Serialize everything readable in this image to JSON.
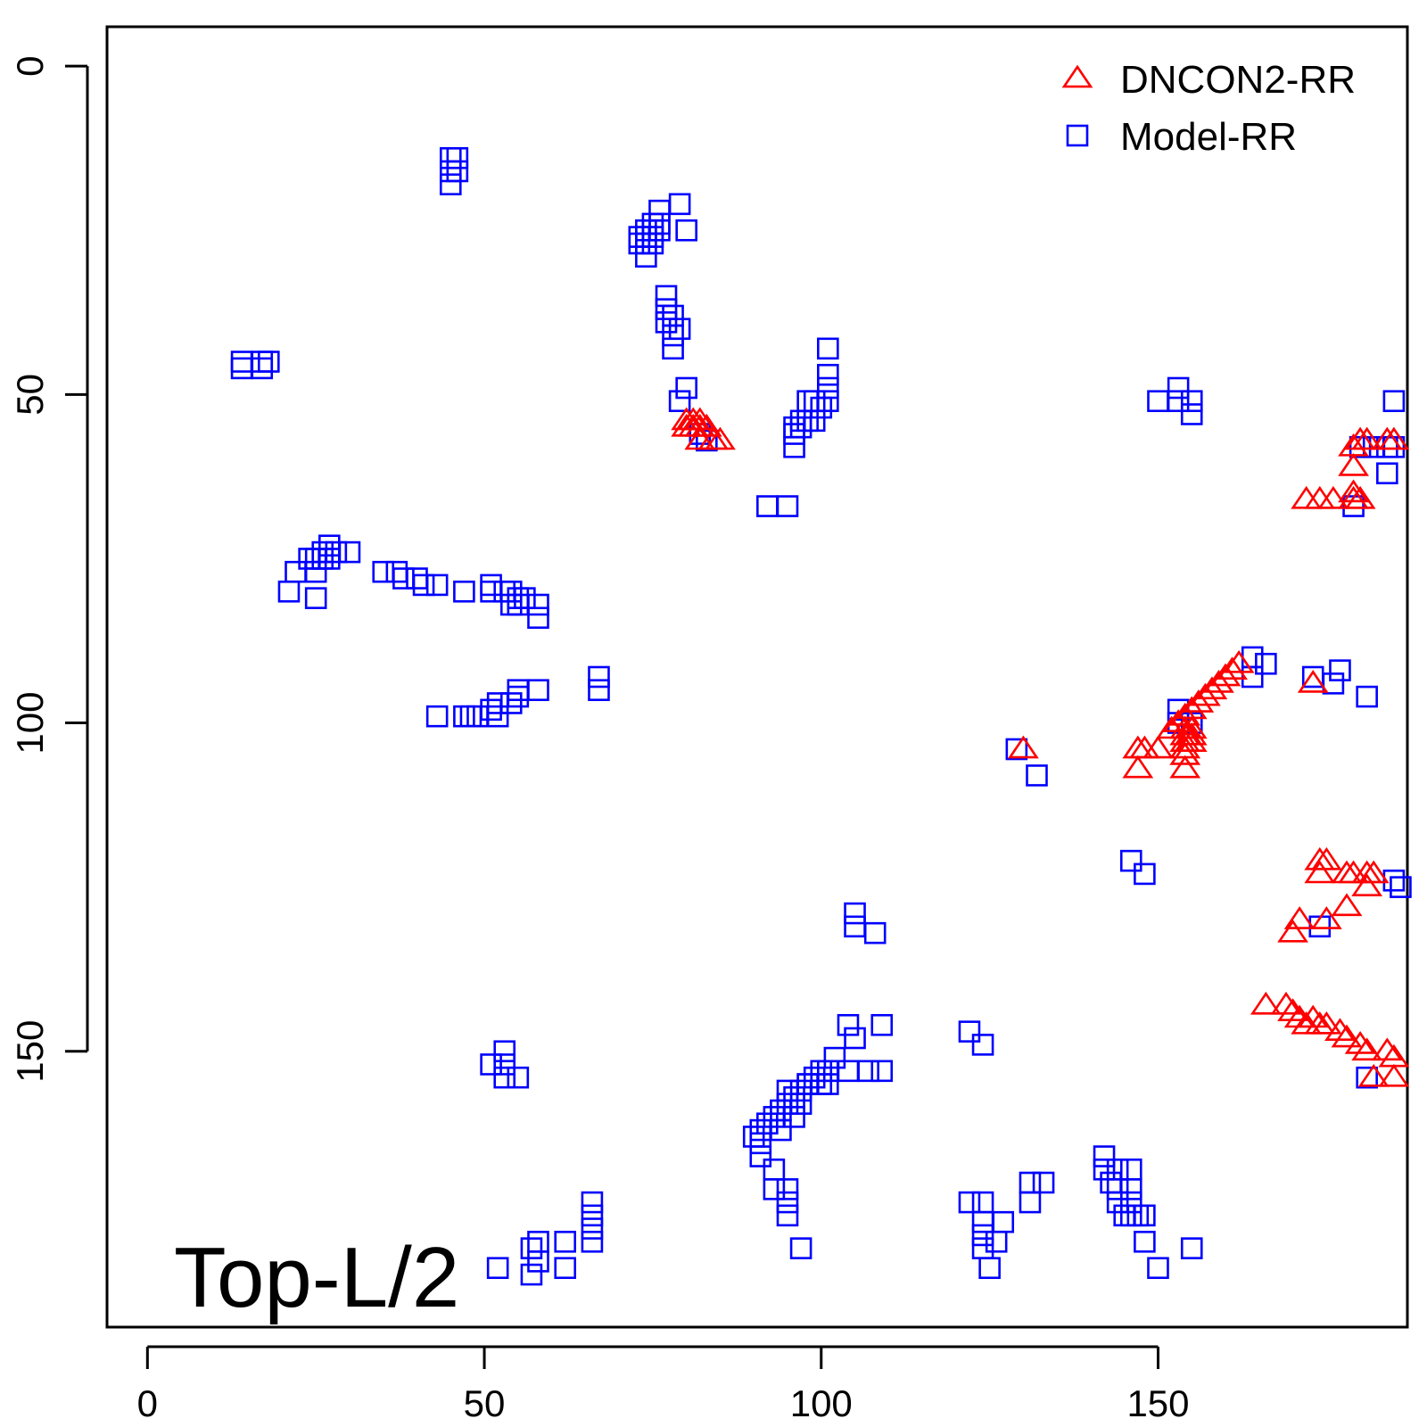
{
  "chart_data": {
    "type": "scatter",
    "xlim": [
      -6,
      187
    ],
    "ylim": [
      -6,
      192
    ],
    "y_reversed": true,
    "x_ticks": [
      0,
      50,
      100,
      150
    ],
    "y_ticks": [
      0,
      50,
      100,
      150
    ],
    "grid": false,
    "legend_position": "top-right",
    "annotation": "Top-L/2",
    "series": [
      {
        "name": "DNCON2-RR",
        "marker": "triangle",
        "color": "#ff0000",
        "points": [
          [
            80,
            54
          ],
          [
            81,
            54
          ],
          [
            82,
            54
          ],
          [
            80,
            55
          ],
          [
            81,
            55
          ],
          [
            82,
            55
          ],
          [
            83,
            55
          ],
          [
            82,
            57
          ],
          [
            84,
            57
          ],
          [
            85,
            57
          ],
          [
            180,
            57
          ],
          [
            181,
            57
          ],
          [
            184,
            57
          ],
          [
            185,
            57
          ],
          [
            179,
            58
          ],
          [
            179,
            61
          ],
          [
            172,
            66
          ],
          [
            174,
            66
          ],
          [
            176,
            66
          ],
          [
            179,
            66
          ],
          [
            180,
            66
          ],
          [
            179,
            65
          ],
          [
            162,
            91
          ],
          [
            161,
            92
          ],
          [
            160,
            93
          ],
          [
            159,
            94
          ],
          [
            158,
            95
          ],
          [
            157,
            96
          ],
          [
            156,
            97
          ],
          [
            155,
            98
          ],
          [
            154,
            99
          ],
          [
            153,
            100
          ],
          [
            152,
            101
          ],
          [
            154,
            101
          ],
          [
            155,
            101
          ],
          [
            154,
            102
          ],
          [
            155,
            102
          ],
          [
            154,
            103
          ],
          [
            155,
            103
          ],
          [
            154,
            104
          ],
          [
            154,
            105
          ],
          [
            154,
            107
          ],
          [
            147,
            104
          ],
          [
            148,
            104
          ],
          [
            150,
            104
          ],
          [
            147,
            107
          ],
          [
            173,
            94
          ],
          [
            130,
            104
          ],
          [
            174,
            121
          ],
          [
            175,
            121
          ],
          [
            174,
            123
          ],
          [
            178,
            123
          ],
          [
            179,
            123
          ],
          [
            181,
            123
          ],
          [
            182,
            123
          ],
          [
            181,
            125
          ],
          [
            178,
            128
          ],
          [
            171,
            130
          ],
          [
            175,
            130
          ],
          [
            170,
            132
          ],
          [
            166,
            143
          ],
          [
            169,
            143
          ],
          [
            170,
            144
          ],
          [
            171,
            145
          ],
          [
            172,
            146
          ],
          [
            173,
            145
          ],
          [
            174,
            146
          ],
          [
            175,
            146
          ],
          [
            177,
            147
          ],
          [
            178,
            148
          ],
          [
            180,
            149
          ],
          [
            181,
            150
          ],
          [
            184,
            150
          ],
          [
            185,
            151
          ],
          [
            182,
            154
          ],
          [
            185,
            154
          ]
        ]
      },
      {
        "name": "Model-RR",
        "marker": "square",
        "color": "#0000ff",
        "points": [
          [
            45,
            14
          ],
          [
            46,
            14
          ],
          [
            45,
            16
          ],
          [
            46,
            16
          ],
          [
            45,
            18
          ],
          [
            79,
            21
          ],
          [
            76,
            22
          ],
          [
            75,
            24
          ],
          [
            76,
            24
          ],
          [
            74,
            25
          ],
          [
            75,
            25
          ],
          [
            76,
            25
          ],
          [
            80,
            25
          ],
          [
            73,
            26
          ],
          [
            74,
            26
          ],
          [
            75,
            26
          ],
          [
            73,
            27
          ],
          [
            74,
            27
          ],
          [
            75,
            27
          ],
          [
            74,
            29
          ],
          [
            77,
            35
          ],
          [
            77,
            37
          ],
          [
            78,
            38
          ],
          [
            77,
            39
          ],
          [
            79,
            40
          ],
          [
            78,
            41
          ],
          [
            78,
            43
          ],
          [
            14,
            45
          ],
          [
            17,
            45
          ],
          [
            18,
            45
          ],
          [
            14,
            46
          ],
          [
            17,
            46
          ],
          [
            101,
            43
          ],
          [
            101,
            47
          ],
          [
            101,
            49
          ],
          [
            101,
            51
          ],
          [
            100,
            52
          ],
          [
            99,
            51
          ],
          [
            98,
            51
          ],
          [
            99,
            54
          ],
          [
            98,
            54
          ],
          [
            97,
            54
          ],
          [
            96,
            55
          ],
          [
            97,
            55
          ],
          [
            96,
            56
          ],
          [
            96,
            58
          ],
          [
            80,
            49
          ],
          [
            79,
            51
          ],
          [
            82,
            56
          ],
          [
            83,
            57
          ],
          [
            92,
            67
          ],
          [
            95,
            67
          ],
          [
            153,
            49
          ],
          [
            150,
            51
          ],
          [
            153,
            51
          ],
          [
            155,
            51
          ],
          [
            155,
            53
          ],
          [
            185,
            51
          ],
          [
            180,
            58
          ],
          [
            182,
            58
          ],
          [
            184,
            58
          ],
          [
            185,
            58
          ],
          [
            184,
            62
          ],
          [
            179,
            67
          ],
          [
            27,
            73
          ],
          [
            26,
            74
          ],
          [
            28,
            74
          ],
          [
            30,
            74
          ],
          [
            24,
            75
          ],
          [
            25,
            75
          ],
          [
            26,
            75
          ],
          [
            27,
            75
          ],
          [
            22,
            77
          ],
          [
            25,
            77
          ],
          [
            21,
            80
          ],
          [
            25,
            81
          ],
          [
            35,
            77
          ],
          [
            37,
            77
          ],
          [
            38,
            78
          ],
          [
            40,
            78
          ],
          [
            41,
            79
          ],
          [
            43,
            79
          ],
          [
            47,
            80
          ],
          [
            51,
            79
          ],
          [
            51,
            80
          ],
          [
            53,
            80
          ],
          [
            54,
            80
          ],
          [
            55,
            81
          ],
          [
            56,
            81
          ],
          [
            54,
            82
          ],
          [
            55,
            82
          ],
          [
            58,
            82
          ],
          [
            58,
            84
          ],
          [
            67,
            93
          ],
          [
            67,
            95
          ],
          [
            43,
            99
          ],
          [
            47,
            99
          ],
          [
            48,
            99
          ],
          [
            49,
            99
          ],
          [
            51,
            98
          ],
          [
            52,
            99
          ],
          [
            52,
            97
          ],
          [
            54,
            97
          ],
          [
            55,
            96
          ],
          [
            55,
            95
          ],
          [
            58,
            95
          ],
          [
            164,
            90
          ],
          [
            166,
            91
          ],
          [
            164,
            93
          ],
          [
            173,
            93
          ],
          [
            176,
            94
          ],
          [
            181,
            96
          ],
          [
            177,
            92
          ],
          [
            129,
            104
          ],
          [
            132,
            108
          ],
          [
            153,
            98
          ],
          [
            153,
            100
          ],
          [
            155,
            100
          ],
          [
            146,
            121
          ],
          [
            148,
            123
          ],
          [
            186,
            125
          ],
          [
            174,
            131
          ],
          [
            185,
            124
          ],
          [
            105,
            129
          ],
          [
            105,
            131
          ],
          [
            108,
            132
          ],
          [
            104,
            146
          ],
          [
            105,
            148
          ],
          [
            109,
            146
          ],
          [
            104,
            153
          ],
          [
            107,
            153
          ],
          [
            109,
            153
          ],
          [
            102,
            151
          ],
          [
            101,
            153
          ],
          [
            100,
            153
          ],
          [
            101,
            155
          ],
          [
            99,
            154
          ],
          [
            98,
            155
          ],
          [
            97,
            156
          ],
          [
            96,
            157
          ],
          [
            95,
            158
          ],
          [
            94,
            159
          ],
          [
            93,
            160
          ],
          [
            92,
            161
          ],
          [
            91,
            162
          ],
          [
            90,
            163
          ],
          [
            91,
            164
          ],
          [
            91,
            166
          ],
          [
            93,
            168
          ],
          [
            93,
            171
          ],
          [
            95,
            171
          ],
          [
            95,
            173
          ],
          [
            95,
            175
          ],
          [
            97,
            180
          ],
          [
            98,
            155
          ],
          [
            100,
            155
          ],
          [
            97,
            158
          ],
          [
            96,
            160
          ],
          [
            94,
            162
          ],
          [
            95,
            156
          ],
          [
            51,
            152
          ],
          [
            53,
            150
          ],
          [
            53,
            152
          ],
          [
            53,
            154
          ],
          [
            55,
            154
          ],
          [
            181,
            154
          ],
          [
            122,
            147
          ],
          [
            124,
            149
          ],
          [
            142,
            166
          ],
          [
            142,
            168
          ],
          [
            144,
            168
          ],
          [
            146,
            168
          ],
          [
            143,
            170
          ],
          [
            144,
            171
          ],
          [
            146,
            171
          ],
          [
            144,
            173
          ],
          [
            146,
            173
          ],
          [
            145,
            175
          ],
          [
            146,
            175
          ],
          [
            147,
            175
          ],
          [
            148,
            175
          ],
          [
            148,
            179
          ],
          [
            150,
            183
          ],
          [
            155,
            180
          ],
          [
            131,
            170
          ],
          [
            133,
            170
          ],
          [
            131,
            173
          ],
          [
            127,
            176
          ],
          [
            122,
            173
          ],
          [
            124,
            173
          ],
          [
            124,
            176
          ],
          [
            124,
            178
          ],
          [
            126,
            179
          ],
          [
            124,
            180
          ],
          [
            125,
            183
          ],
          [
            66,
            173
          ],
          [
            66,
            175
          ],
          [
            66,
            177
          ],
          [
            66,
            179
          ],
          [
            62,
            179
          ],
          [
            62,
            183
          ],
          [
            58,
            179
          ],
          [
            57,
            180
          ],
          [
            58,
            182
          ],
          [
            57,
            184
          ],
          [
            52,
            183
          ]
        ]
      }
    ]
  }
}
